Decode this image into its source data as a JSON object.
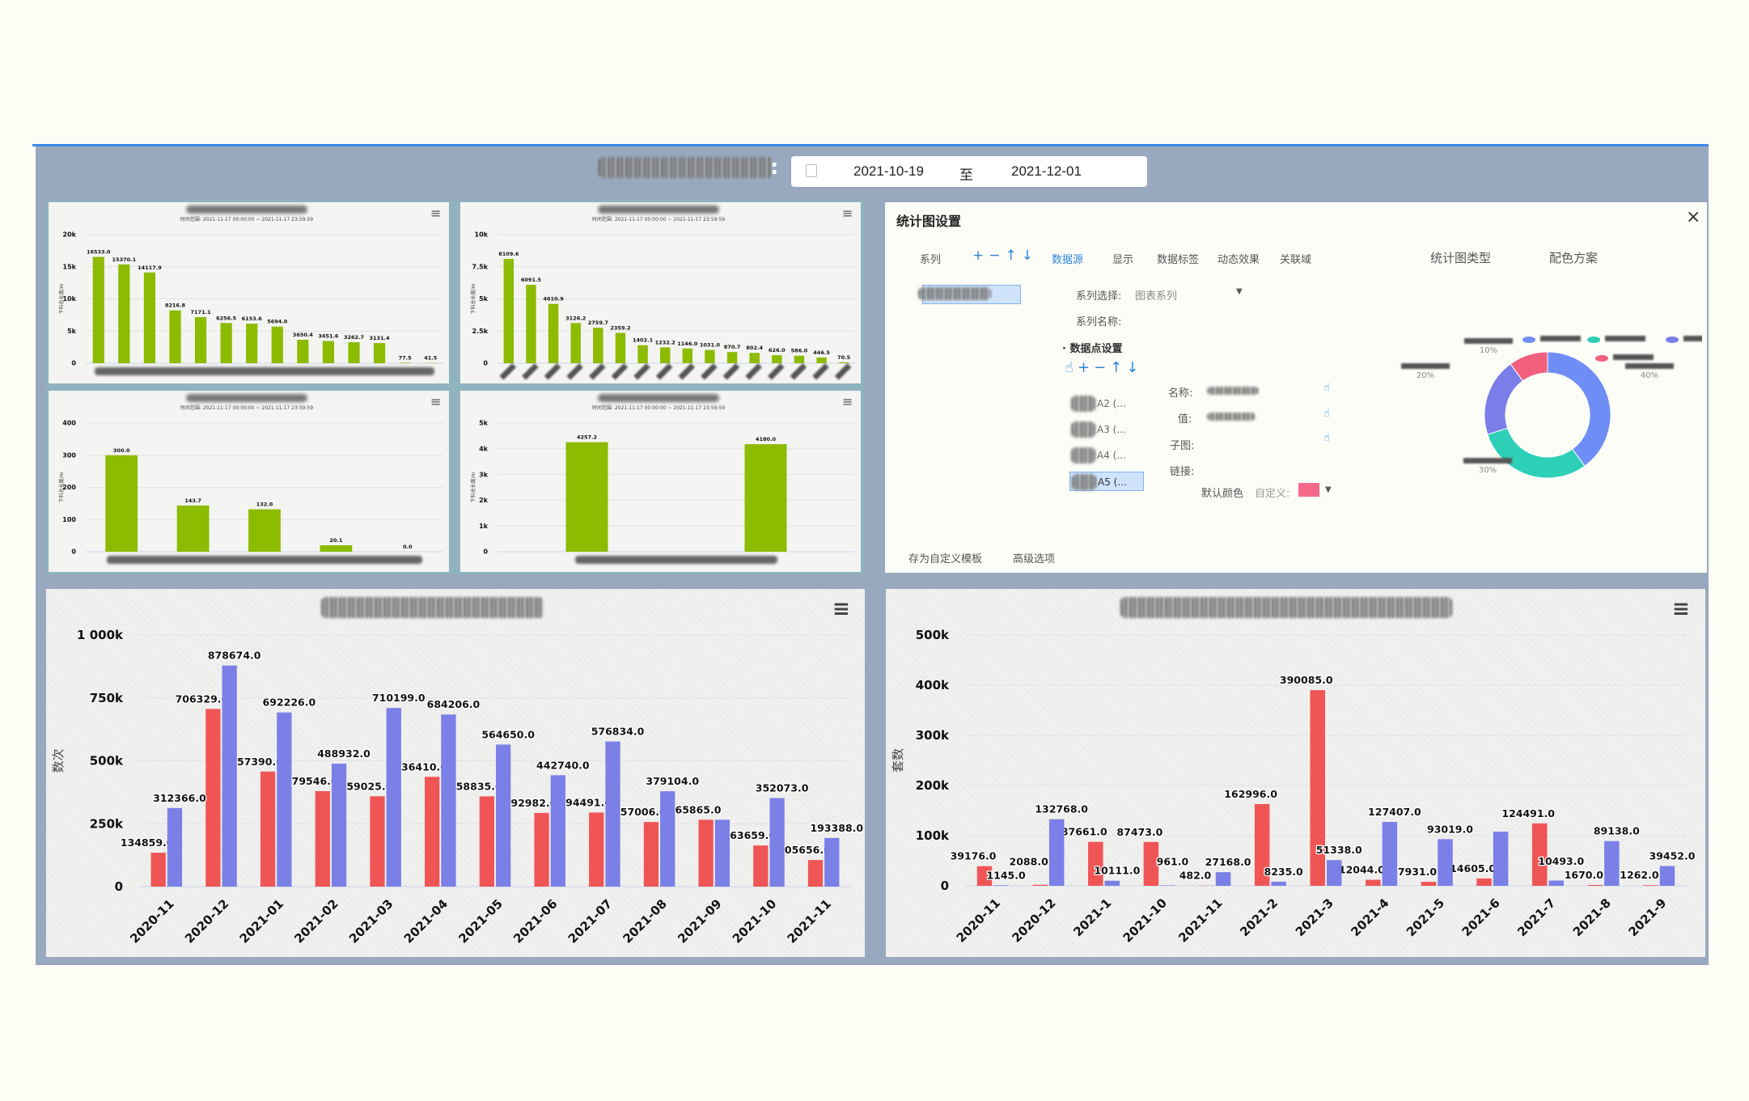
{
  "header": {
    "date_from": "2021-10-19",
    "separator": "至",
    "date_to": "2021-12-01",
    "icon": "calendar-icon"
  },
  "colors": {
    "green": "#8cbb00",
    "red": "#f05555",
    "blue": "#7b80e6",
    "accent": "#3c8ae6"
  },
  "mini_subtitle": "时间范围: 2021-11-17 00:00:00 ~ 2021-11-17 23:59:59",
  "mini_ylabel": "下料总长度/m",
  "chart_data": [
    {
      "type": "bar",
      "ylabel": "下料总长度/m",
      "yticks": [
        "0",
        "5k",
        "10k",
        "15k",
        "20k"
      ],
      "ylim": [
        0,
        20000
      ],
      "values": [
        16533.0,
        15370.1,
        14117.9,
        8216.8,
        7171.1,
        6256.5,
        6153.6,
        5694.0,
        3650.4,
        3451.6,
        3262.7,
        3131.4,
        77.5,
        41.5
      ],
      "series_color": "#8cbb00"
    },
    {
      "type": "bar",
      "ylabel": "下料总长度/m",
      "yticks": [
        "0",
        "2.5k",
        "5k",
        "7.5k",
        "10k"
      ],
      "ylim": [
        0,
        10000
      ],
      "values": [
        8109.6,
        6091.5,
        4610.9,
        3126.2,
        2759.7,
        2359.2,
        1402.1,
        1232.2,
        1146.0,
        1031.0,
        870.7,
        802.4,
        626.0,
        586.0,
        446.5,
        70.5
      ],
      "series_color": "#8cbb00"
    },
    {
      "type": "bar",
      "ylabel": "下料总长度/m",
      "yticks": [
        "0",
        "100",
        "200",
        "300",
        "400"
      ],
      "ylim": [
        0,
        400
      ],
      "values": [
        300.0,
        143.7,
        132.0,
        20.1,
        0.0
      ],
      "series_color": "#8cbb00"
    },
    {
      "type": "bar",
      "ylabel": "下料总长度/m",
      "yticks": [
        "0",
        "1k",
        "2k",
        "3k",
        "4k",
        "5k"
      ],
      "ylim": [
        0,
        5000
      ],
      "values": [
        4257.2,
        4180.0
      ],
      "series_color": "#8cbb00"
    },
    {
      "type": "bar",
      "ylabel": "数次",
      "yticks": [
        "0",
        "250k",
        "500k",
        "750k",
        "1 000k"
      ],
      "ylim": [
        0,
        1000000
      ],
      "categories": [
        "2020-11",
        "2020-12",
        "2021-01",
        "2021-02",
        "2021-03",
        "2021-04",
        "2021-05",
        "2021-06",
        "2021-07",
        "2021-08",
        "2021-09",
        "2021-10",
        "2021-11"
      ],
      "series": [
        {
          "color": "#f05555",
          "values": [
            134859,
            706329,
            457390,
            379546,
            359025,
            436410,
            358835,
            292982,
            294491,
            257006,
            265865,
            163659,
            105656
          ],
          "label_hidden": []
        },
        {
          "color": "#7b80e6",
          "values": [
            312366,
            878674,
            692226,
            488932,
            710199,
            684206,
            564650,
            442740,
            576834,
            379104,
            265865,
            352073,
            193388
          ],
          "label_hidden": [
            10
          ]
        }
      ]
    },
    {
      "type": "bar",
      "ylabel": "套数",
      "yticks": [
        "0",
        "100k",
        "200k",
        "300k",
        "400k",
        "500k"
      ],
      "ylim": [
        0,
        500000
      ],
      "categories": [
        "2020-11",
        "2020-12",
        "2021-1",
        "2021-10",
        "2021-11",
        "2021-2",
        "2021-3",
        "2021-4",
        "2021-5",
        "2021-6",
        "2021-7",
        "2021-8",
        "2021-9"
      ],
      "series": [
        {
          "color": "#f05555",
          "values": [
            39176,
            2088,
            87661,
            87473,
            482,
            162996,
            390085,
            12044,
            7931,
            14605,
            124491,
            1670,
            1262
          ],
          "label_hidden": []
        },
        {
          "color": "#7b80e6",
          "values": [
            1145,
            132768,
            10111,
            961,
            27168,
            8235,
            51338,
            127407,
            93019,
            108000,
            10493,
            89138,
            39452
          ],
          "label_hidden": [
            9
          ]
        }
      ]
    }
  ],
  "dialog": {
    "title": "统计图设置",
    "close_icon": "close-icon",
    "tabs": {
      "series": "系列",
      "datasource": "数据源",
      "display": "显示",
      "datalabel": "数据标签",
      "animation": "动态效果",
      "relation": "关联域"
    },
    "chart_type": "统计图类型",
    "color_scheme": "配色方案",
    "series_select_label": "系列选择:",
    "series_select_value": "图表系列",
    "series_name_label": "系列名称:",
    "datapoint_section": "数据点设置",
    "points": [
      "A2 (...",
      "A3 (...",
      "A4 (...",
      "A5 (..."
    ],
    "fields": {
      "name": "名称:",
      "value": "值:",
      "subchart": "子图:",
      "link": "链接:"
    },
    "default_color": "默认颜色",
    "custom_label": "自定义:",
    "custom_color": "#f56a8a",
    "footer": {
      "save_template": "存为自定义模板",
      "advanced": "高级选项"
    },
    "donut": {
      "type": "pie",
      "percents": [
        40,
        30,
        20,
        10
      ],
      "labels": [
        "40%",
        "30%",
        "20%",
        "10%"
      ],
      "colors": [
        "#6e8ef5",
        "#2ecfb7",
        "#7b7ee8",
        "#f3607e"
      ]
    }
  }
}
